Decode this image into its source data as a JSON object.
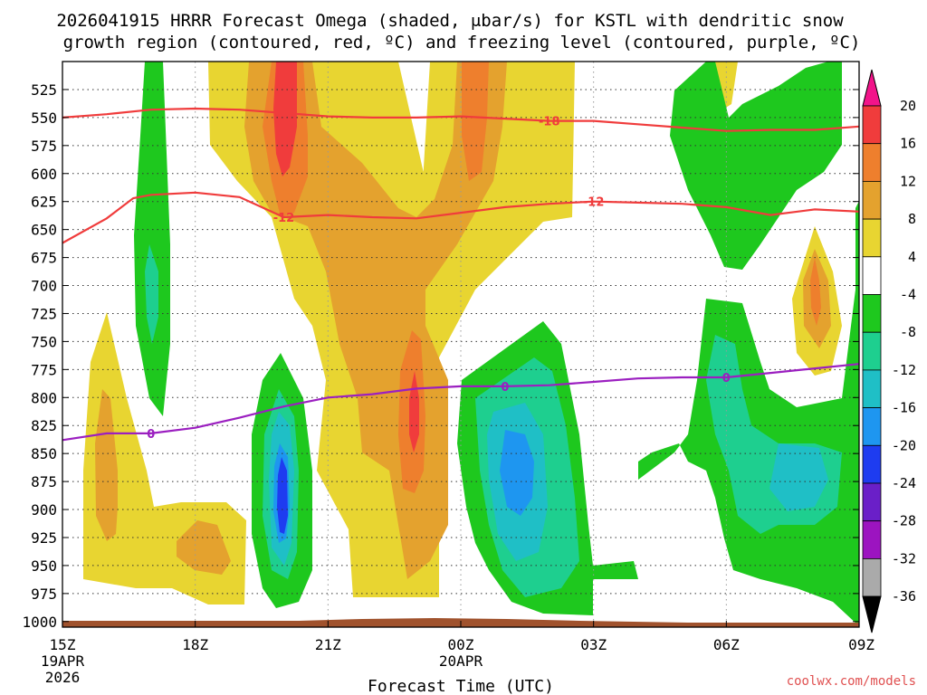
{
  "chart_data": {
    "type": "heatmap",
    "title_line1": "2026041915 HRRR Forecast Omega (shaded, μbar/s) for KSTL with dendritic snow",
    "title_line2": "growth region (contoured, red, ºC) and freezing level (contoured, purple, ºC)",
    "xlabel": "Forecast Time (UTC)",
    "x_ticks": [
      {
        "hour": 0,
        "label": "15Z",
        "sub1": "19APR",
        "sub2": "2026"
      },
      {
        "hour": 3,
        "label": "18Z",
        "sub1": "",
        "sub2": ""
      },
      {
        "hour": 6,
        "label": "21Z",
        "sub1": "",
        "sub2": ""
      },
      {
        "hour": 9,
        "label": "00Z",
        "sub1": "20APR",
        "sub2": ""
      },
      {
        "hour": 12,
        "label": "03Z",
        "sub1": "",
        "sub2": ""
      },
      {
        "hour": 15,
        "label": "06Z",
        "sub1": "",
        "sub2": ""
      },
      {
        "hour": 18,
        "label": "09Z",
        "sub1": "",
        "sub2": ""
      }
    ],
    "y_ticks": [
      "525",
      "550",
      "575",
      "600",
      "625",
      "650",
      "675",
      "700",
      "725",
      "750",
      "775",
      "800",
      "825",
      "850",
      "875",
      "900",
      "925",
      "950",
      "975",
      "1000"
    ],
    "ylim": [
      500,
      1005
    ],
    "xlim": [
      0,
      18
    ],
    "colorbar": {
      "labels": [
        "20",
        "16",
        "12",
        "8",
        "4",
        "-4",
        "-8",
        "-12",
        "-16",
        "-20",
        "-24",
        "-28",
        "-32",
        "-36"
      ],
      "colors": [
        "#f2148a",
        "#f03c3c",
        "#ee7f2d",
        "#e4a22e",
        "#e8d531",
        "#ffffff",
        "#1ec81e",
        "#1ecf8f",
        "#1fbfc6",
        "#1e96f0",
        "#1e3cf0",
        "#6a1fc8",
        "#9c14c0",
        "#aaaaaa",
        "#000000"
      ]
    },
    "series": [
      {
        "name": "-18 C (red)",
        "label": "-18",
        "color": "#f03c3c",
        "x": [
          0,
          1,
          2,
          3,
          4,
          5,
          6,
          7,
          8,
          9,
          10,
          11,
          12,
          13,
          14,
          15,
          16,
          17,
          18
        ],
        "y": [
          550,
          547,
          543,
          542,
          543,
          546,
          549,
          550,
          550,
          549,
          551,
          553,
          553,
          556,
          559,
          562,
          561,
          561,
          558
        ]
      },
      {
        "name": "-12 C (red)",
        "label": "-12",
        "color": "#f03c3c",
        "x": [
          0,
          1,
          1.6,
          2,
          3,
          4,
          4.5,
          5,
          6,
          7,
          8,
          9,
          10,
          11,
          12,
          13,
          14,
          15,
          16,
          17,
          18
        ],
        "y": [
          662,
          640,
          622,
          619,
          617,
          621,
          630,
          639,
          637,
          639,
          640,
          635,
          630,
          627,
          625,
          626,
          627,
          630,
          637,
          632,
          634
        ]
      },
      {
        "name": "0 C freezing level (purple)",
        "label": "0",
        "color": "#9b1fc0",
        "x": [
          0,
          1,
          2,
          3,
          4,
          5,
          6,
          7,
          8,
          9,
          10,
          11,
          12,
          13,
          14,
          15,
          16,
          17,
          18
        ],
        "y": [
          838,
          832,
          832,
          827,
          818,
          808,
          800,
          797,
          792,
          790,
          790,
          789,
          786,
          783,
          782,
          782,
          778,
          774,
          770
        ]
      }
    ],
    "shading_regions": [
      {
        "level": "4-8",
        "color": "#e8d531"
      },
      {
        "level": "8-12",
        "color": "#e4a22e"
      },
      {
        "level": "12-16",
        "color": "#ee7f2d"
      },
      {
        "level": "16-20",
        "color": "#f03c3c"
      },
      {
        "level": "-4 to -8",
        "color": "#1ec81e"
      },
      {
        "level": "-8 to -12",
        "color": "#1ecf8f"
      },
      {
        "level": "-12 to -16",
        "color": "#1fbfc6"
      },
      {
        "level": "-16 to -20",
        "color": "#1e96f0"
      },
      {
        "level": "-20 to -24",
        "color": "#1e3cf0"
      }
    ]
  },
  "credit": "coolwx.com/models"
}
